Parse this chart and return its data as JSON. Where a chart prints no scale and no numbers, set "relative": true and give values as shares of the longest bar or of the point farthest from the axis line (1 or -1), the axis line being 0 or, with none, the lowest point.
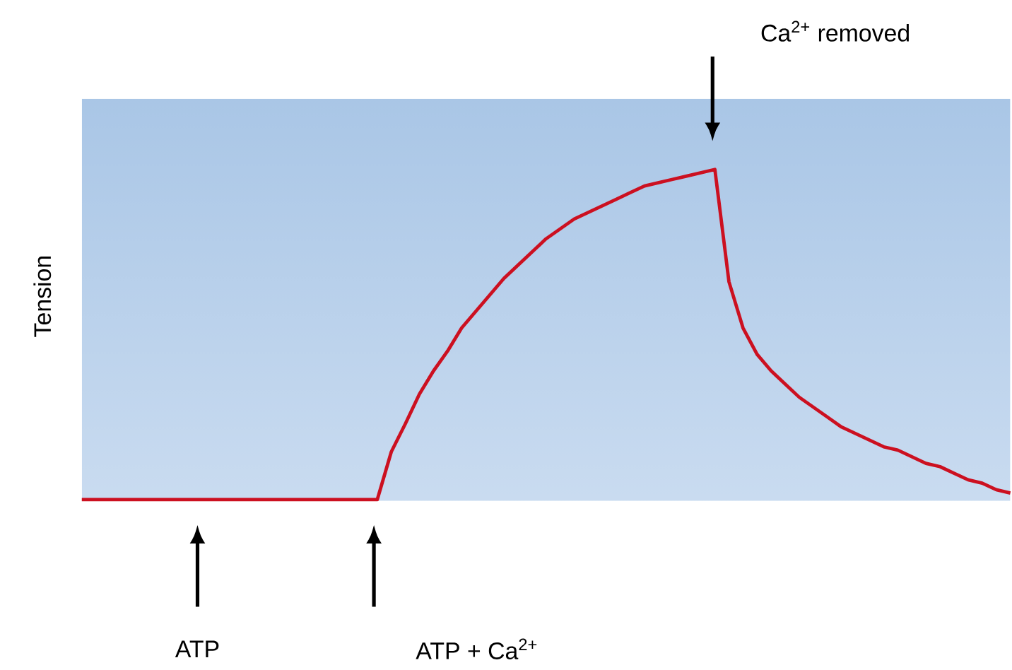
{
  "chart_data": {
    "type": "line",
    "relative": true,
    "ylabel": "Tension",
    "categories": [
      null,
      null,
      null,
      null,
      null,
      null,
      null,
      null,
      null,
      null,
      null,
      null,
      null,
      null,
      null,
      null,
      null,
      null,
      null,
      null,
      null,
      null,
      null,
      null,
      null,
      null,
      null,
      null,
      null,
      null,
      null,
      null,
      null,
      null,
      null,
      null,
      null,
      null,
      null,
      null,
      null,
      null,
      null,
      null,
      null,
      null,
      null,
      null,
      null,
      null,
      null,
      null,
      null,
      null,
      null,
      null,
      null,
      null,
      null,
      null,
      null,
      null,
      null,
      null,
      null,
      null,
      null
    ],
    "series": [
      {
        "color": "#cc1020",
        "values": [
          0,
          0,
          0,
          0,
          0,
          0,
          0,
          0,
          0,
          0,
          0,
          0,
          0,
          0,
          0,
          0,
          0,
          0,
          0,
          0,
          0,
          0,
          0.145,
          0.23,
          0.32,
          0.39,
          0.45,
          0.52,
          0.57,
          0.62,
          0.67,
          0.71,
          0.75,
          0.79,
          0.82,
          0.85,
          0.87,
          0.89,
          0.91,
          0.93,
          0.95,
          0.96,
          0.97,
          0.98,
          0.99,
          1,
          0.66,
          0.52,
          0.44,
          0.39,
          0.35,
          0.31,
          0.28,
          0.25,
          0.22,
          0.2,
          0.18,
          0.16,
          0.15,
          0.13,
          0.11,
          0.1,
          0.08,
          0.06,
          0.05,
          0.03,
          0.02
        ]
      }
    ],
    "annotations": [
      "ATP",
      "ATP + Ca$^{2+}$",
      "Ca$^{2+}$ removed"
    ],
    "marker": "none",
    "line_style": "solid"
  }
}
